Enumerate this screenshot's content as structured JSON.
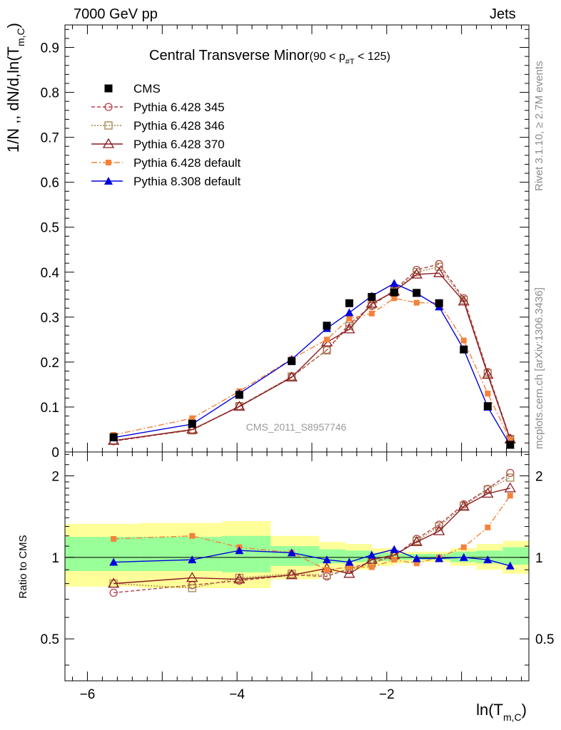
{
  "header": {
    "energy": "7000 GeV pp",
    "process": "Jets"
  },
  "side": {
    "rivet": "Rivet 3.1.10, ≥ 2.7M events",
    "mcplots": "mcplots.cern.ch [arXiv:1306.3436]"
  },
  "chart_data": {
    "type": "line",
    "title": "Central Transverse Minor",
    "title_cut": "(90 < p",
    "title_cut_sub": "#T",
    "title_cut_end": " < 125)",
    "watermark": "CMS_2011_S8957746",
    "xlabel": "ln(T",
    "xlabel_sub": "m,C",
    "xlabel_end": ")",
    "ylabel": "1/N ,, dN/d,ln(T",
    "ylabel_sub": "m,C",
    "ylabel_end": ")",
    "ratio_ylabel": "Ratio to CMS",
    "xlim": [
      -6.3,
      -0.1
    ],
    "ylim": [
      0,
      0.95
    ],
    "ratio_ylim": [
      0.35,
      2.45
    ],
    "x_ticks": [
      -6,
      -4,
      -2
    ],
    "x_tick_labels": [
      "−6",
      "−4",
      "−2"
    ],
    "y_ticks": [
      0,
      0.1,
      0.2,
      0.3,
      0.4,
      0.5,
      0.6,
      0.7,
      0.8,
      0.9
    ],
    "y_tick_labels": [
      "0",
      "0.1",
      "0.2",
      "0.3",
      "0.4",
      "0.5",
      "0.6",
      "0.7",
      "0.8",
      "0.9"
    ],
    "ratio_ticks": [
      0.5,
      1,
      2
    ],
    "ratio_tick_labels": [
      "0.5",
      "1",
      "2"
    ],
    "x": [
      -5.65,
      -4.6,
      -3.97,
      -3.27,
      -2.8,
      -2.5,
      -2.2,
      -1.9,
      -1.6,
      -1.3,
      -0.97,
      -0.65,
      -0.35
    ],
    "series": [
      {
        "name": "CMS",
        "color": "#000000",
        "marker": "square-filled",
        "dash": "",
        "values": [
          0.033,
          0.063,
          0.127,
          0.202,
          0.281,
          0.331,
          0.345,
          0.355,
          0.354,
          0.331,
          0.228,
          0.102,
          0.016
        ],
        "ratio": [
          1,
          1,
          1,
          1,
          1,
          1,
          1,
          1,
          1,
          1,
          1,
          1,
          1
        ]
      },
      {
        "name": "Pythia 6.428 345",
        "color": "#b5414b",
        "marker": "circle-open",
        "dash": "5,3",
        "values": [
          0.024,
          0.049,
          0.102,
          0.167,
          0.227,
          0.285,
          0.325,
          0.36,
          0.405,
          0.418,
          0.342,
          0.178,
          0.03
        ],
        "ratio": [
          0.74,
          0.79,
          0.82,
          0.86,
          0.85,
          0.91,
          0.96,
          1.01,
          1.17,
          1.32,
          1.57,
          1.79,
          2.05
        ]
      },
      {
        "name": "Pythia 6.428 346",
        "color": "#a4834a",
        "marker": "square-open",
        "dash": "2,2",
        "values": [
          0.026,
          0.048,
          0.102,
          0.168,
          0.226,
          0.28,
          0.327,
          0.358,
          0.4,
          0.412,
          0.338,
          0.175,
          0.029
        ],
        "ratio": [
          0.8,
          0.77,
          0.84,
          0.87,
          0.86,
          0.9,
          0.95,
          1.01,
          1.15,
          1.3,
          1.55,
          1.78,
          1.97
        ]
      },
      {
        "name": "Pythia 6.428 370",
        "color": "#8a1a22",
        "marker": "triangle-open",
        "dash": "",
        "values": [
          0.025,
          0.05,
          0.101,
          0.166,
          0.244,
          0.273,
          0.33,
          0.357,
          0.395,
          0.398,
          0.335,
          0.172,
          0.028
        ],
        "ratio": [
          0.8,
          0.84,
          0.83,
          0.86,
          0.91,
          0.87,
          0.98,
          1.02,
          1.14,
          1.25,
          1.54,
          1.72,
          1.8
        ]
      },
      {
        "name": "Pythia 6.428 default",
        "color": "#f5823a",
        "marker": "square-filled-small",
        "dash": "8,3,2,3",
        "values": [
          0.038,
          0.075,
          0.135,
          0.207,
          0.25,
          0.297,
          0.308,
          0.342,
          0.332,
          0.332,
          0.248,
          0.13,
          0.027
        ],
        "ratio": [
          1.17,
          1.2,
          1.09,
          1.04,
          0.9,
          0.92,
          0.92,
          0.98,
          0.95,
          1.0,
          1.09,
          1.29,
          1.69
        ]
      },
      {
        "name": "Pythia 8.308 default",
        "color": "#0000dd",
        "marker": "triangle-filled",
        "dash": "",
        "values": [
          0.032,
          0.062,
          0.13,
          0.206,
          0.275,
          0.31,
          0.347,
          0.375,
          0.353,
          0.323,
          0.228,
          0.1,
          0.015
        ],
        "ratio": [
          0.96,
          0.98,
          1.06,
          1.04,
          0.98,
          0.96,
          1.02,
          1.07,
          0.99,
          0.99,
          1.0,
          0.98,
          0.93
        ]
      }
    ],
    "uncertainty_bands": {
      "edges": [
        -6.3,
        -5.3,
        -4.2,
        -3.55,
        -2.9,
        -2.55,
        -2.2,
        -1.9,
        -1.55,
        -1.15,
        -0.8,
        -0.45,
        -0.1
      ],
      "outer": [
        [
          0.78,
          1.33
        ],
        [
          0.77,
          1.34
        ],
        [
          0.77,
          1.36
        ],
        [
          0.83,
          1.2
        ],
        [
          0.88,
          1.14
        ],
        [
          0.9,
          1.12
        ],
        [
          0.93,
          1.08
        ],
        [
          0.95,
          1.05
        ],
        [
          0.96,
          1.05
        ],
        [
          0.93,
          1.08
        ],
        [
          0.9,
          1.12
        ],
        [
          0.87,
          1.15
        ],
        [
          0.83,
          1.28
        ]
      ],
      "inner": [
        [
          0.89,
          1.19
        ],
        [
          0.89,
          1.19
        ],
        [
          0.88,
          1.2
        ],
        [
          0.93,
          1.1
        ],
        [
          0.95,
          1.07
        ],
        [
          0.96,
          1.06
        ],
        [
          0.97,
          1.04
        ],
        [
          0.98,
          1.03
        ],
        [
          0.98,
          1.03
        ],
        [
          0.96,
          1.05
        ],
        [
          0.95,
          1.06
        ],
        [
          0.94,
          1.09
        ],
        [
          0.93,
          1.14
        ]
      ],
      "outer_color": "#ffff99",
      "inner_color": "#99ff99"
    }
  }
}
